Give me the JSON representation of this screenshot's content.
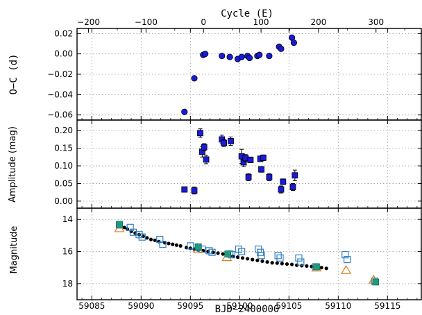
{
  "chart_data": [
    {
      "type": "scatter",
      "panel": "oc",
      "ylabel": "O−C (d)",
      "top_xlabel": "Cycle (E)",
      "top_x_ticks": [
        -200,
        -100,
        0,
        100,
        200,
        300
      ],
      "top_x_range": [
        -220,
        380
      ],
      "ylim": [
        -0.065,
        0.025
      ],
      "y_ticks": [
        -0.06,
        -0.04,
        -0.02,
        0.0,
        0.02
      ],
      "y_tick_labels": [
        "−0.06",
        "−0.04",
        "−0.02",
        "0.00",
        "0.02"
      ],
      "grid": true,
      "marker_color": "#1a1adc",
      "points": [
        {
          "x": 59094.4,
          "y": -0.057,
          "err": 0.001
        },
        {
          "x": 59095.4,
          "y": -0.024,
          "err": 0.002
        },
        {
          "x": 59096.3,
          "y": -0.001,
          "err": 0.001
        },
        {
          "x": 59096.5,
          "y": 0.0,
          "err": 0.001
        },
        {
          "x": 59098.2,
          "y": -0.002,
          "err": 0.001
        },
        {
          "x": 59099.0,
          "y": -0.003,
          "err": 0.001
        },
        {
          "x": 59099.8,
          "y": -0.005,
          "err": 0.001
        },
        {
          "x": 59100.2,
          "y": -0.003,
          "err": 0.001
        },
        {
          "x": 59100.8,
          "y": -0.002,
          "err": 0.001
        },
        {
          "x": 59101.0,
          "y": -0.004,
          "err": 0.001
        },
        {
          "x": 59101.8,
          "y": -0.002,
          "err": 0.001
        },
        {
          "x": 59102.0,
          "y": -0.001,
          "err": 0.001
        },
        {
          "x": 59103.0,
          "y": -0.002,
          "err": 0.001
        },
        {
          "x": 59104.0,
          "y": 0.007,
          "err": 0.002
        },
        {
          "x": 59104.2,
          "y": 0.005,
          "err": 0.002
        },
        {
          "x": 59105.3,
          "y": 0.016,
          "err": 0.002
        },
        {
          "x": 59105.5,
          "y": 0.011,
          "err": 0.001
        }
      ]
    },
    {
      "type": "scatter",
      "panel": "amplitude",
      "ylabel": "Amplitude (mag)",
      "ylim": [
        -0.02,
        0.23
      ],
      "y_ticks": [
        0.0,
        0.05,
        0.1,
        0.15,
        0.2
      ],
      "y_tick_labels": [
        "0.00",
        "0.05",
        "0.10",
        "0.15",
        "0.20"
      ],
      "grid": true,
      "marker_color": "#1a1adc",
      "points": [
        {
          "x": 59094.4,
          "y": 0.033,
          "err": 0.004
        },
        {
          "x": 59095.4,
          "y": 0.03,
          "err": 0.01
        },
        {
          "x": 59096.0,
          "y": 0.193,
          "err": 0.012
        },
        {
          "x": 59096.2,
          "y": 0.14,
          "err": 0.015
        },
        {
          "x": 59096.4,
          "y": 0.153,
          "err": 0.01
        },
        {
          "x": 59096.6,
          "y": 0.118,
          "err": 0.012
        },
        {
          "x": 59098.2,
          "y": 0.175,
          "err": 0.012
        },
        {
          "x": 59098.4,
          "y": 0.165,
          "err": 0.01
        },
        {
          "x": 59099.1,
          "y": 0.17,
          "err": 0.012
        },
        {
          "x": 59100.2,
          "y": 0.127,
          "err": 0.02
        },
        {
          "x": 59100.4,
          "y": 0.11,
          "err": 0.012
        },
        {
          "x": 59100.6,
          "y": 0.122,
          "err": 0.01
        },
        {
          "x": 59100.9,
          "y": 0.068,
          "err": 0.01
        },
        {
          "x": 59101.1,
          "y": 0.117,
          "err": 0.008
        },
        {
          "x": 59102.1,
          "y": 0.12,
          "err": 0.008
        },
        {
          "x": 59102.2,
          "y": 0.09,
          "err": 0.008
        },
        {
          "x": 59102.4,
          "y": 0.123,
          "err": 0.008
        },
        {
          "x": 59103.0,
          "y": 0.068,
          "err": 0.01
        },
        {
          "x": 59104.2,
          "y": 0.033,
          "err": 0.01
        },
        {
          "x": 59104.4,
          "y": 0.055,
          "err": 0.008
        },
        {
          "x": 59105.4,
          "y": 0.04,
          "err": 0.01
        },
        {
          "x": 59105.6,
          "y": 0.073,
          "err": 0.015
        }
      ]
    },
    {
      "type": "scatter",
      "panel": "lightcurve",
      "xlabel": "BJD−2400000",
      "ylabel": "Magnitude",
      "xlim": [
        59083.5,
        59118.5
      ],
      "x_ticks": [
        59085,
        59090,
        59095,
        59100,
        59105,
        59110,
        59115
      ],
      "ylim": [
        19.0,
        13.3
      ],
      "y_ticks": [
        14,
        16,
        18
      ],
      "grid": true,
      "series": [
        {
          "marker": "dot",
          "color": "#000000",
          "x": [
            59088.3,
            59088.6,
            59089.0,
            59089.4,
            59089.8,
            59090.2,
            59090.6,
            59091.0,
            59091.4,
            59091.8,
            59092.4,
            59092.8,
            59093.2,
            59093.6,
            59094.0,
            59094.6,
            59095.0,
            59095.4,
            59095.8,
            59096.3,
            59096.8,
            59097.3,
            59097.8,
            59098.3,
            59098.8,
            59099.3,
            59099.8,
            59100.3,
            59100.8,
            59101.3,
            59101.8,
            59102.3,
            59102.8,
            59103.3,
            59103.8,
            59104.3,
            59104.8,
            59105.3,
            59105.8,
            59106.3,
            59106.8,
            59107.3,
            59107.8,
            59108.3,
            59108.8
          ],
          "y": [
            14.5,
            14.6,
            14.75,
            14.85,
            14.95,
            15.05,
            15.15,
            15.25,
            15.3,
            15.38,
            15.45,
            15.5,
            15.55,
            15.6,
            15.65,
            15.75,
            15.8,
            15.85,
            15.9,
            15.95,
            16.0,
            16.05,
            16.1,
            16.15,
            16.2,
            16.3,
            16.35,
            16.4,
            16.45,
            16.5,
            16.55,
            16.6,
            16.65,
            16.7,
            16.72,
            16.75,
            16.78,
            16.8,
            16.85,
            16.88,
            16.9,
            16.93,
            16.96,
            17.0,
            17.05
          ]
        },
        {
          "marker": "open-square",
          "color": "#2f7fc4",
          "x": [
            59087.8,
            59088.9,
            59089.2,
            59089.8,
            59090.1,
            59091.9,
            59092.2,
            59095.0,
            59095.8,
            59096.2,
            59096.9,
            59097.2,
            59099.0,
            59099.2,
            59099.9,
            59100.2,
            59101.9,
            59102.1,
            59102.2,
            59103.9,
            59104.1,
            59106.0,
            59106.2,
            59107.7,
            59110.7,
            59110.9,
            59113.7
          ],
          "y": [
            14.35,
            14.5,
            14.8,
            14.95,
            15.1,
            15.25,
            15.55,
            15.65,
            15.75,
            15.85,
            15.95,
            16.05,
            16.15,
            16.2,
            15.85,
            16.0,
            15.85,
            16.05,
            16.25,
            16.25,
            16.4,
            16.4,
            16.65,
            16.95,
            16.2,
            16.5,
            17.85
          ]
        },
        {
          "marker": "open-triangle",
          "color": "#d8801a",
          "x": [
            59087.8,
            59095.8,
            59098.7,
            59107.8,
            59110.8,
            59113.6
          ],
          "y": [
            14.55,
            15.85,
            16.35,
            17.0,
            17.15,
            17.75
          ]
        },
        {
          "marker": "filled-square",
          "color": "#1f9a7a",
          "x": [
            59087.8,
            59095.8,
            59098.8,
            59107.8,
            59113.8
          ],
          "y": [
            14.3,
            15.7,
            16.15,
            16.95,
            17.9
          ]
        }
      ]
    }
  ]
}
